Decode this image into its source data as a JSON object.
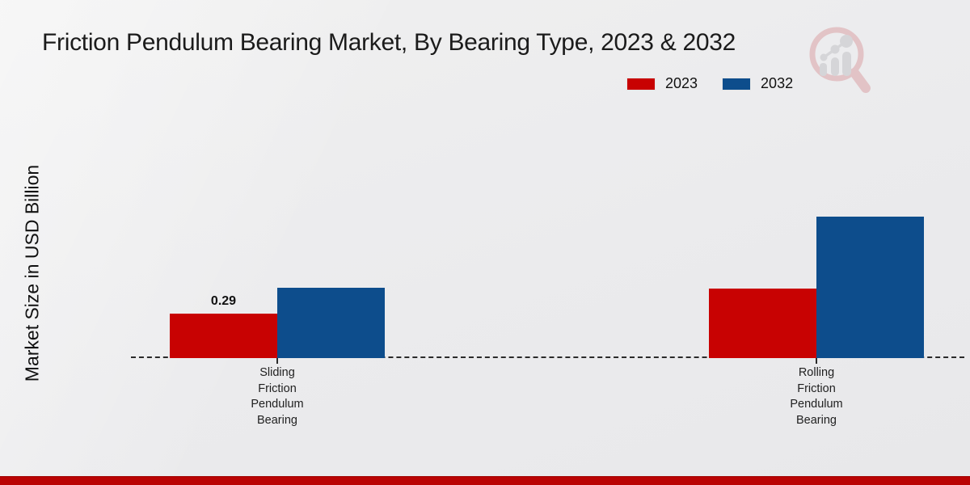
{
  "page": {
    "title": "Friction Pendulum Bearing Market, By Bearing Type, 2023 & 2032",
    "ylabel": "Market Size in USD Billion"
  },
  "colors": {
    "series_2023": "#c80202",
    "series_2032": "#0d4d8c",
    "footer_bar": "#ba0303",
    "baseline": "#2a2a2a"
  },
  "logo": {
    "name": "magnifier-bar-chart-watermark"
  },
  "chart_data": {
    "type": "bar",
    "title": "Friction Pendulum Bearing Market, By Bearing Type, 2023 & 2032",
    "xlabel": "",
    "ylabel": "Market Size in USD Billion",
    "categories": [
      "Sliding Friction Pendulum Bearing",
      "Rolling Friction Pendulum Bearing"
    ],
    "category_lines": [
      [
        "Sliding",
        "Friction",
        "Pendulum",
        "Bearing"
      ],
      [
        "Rolling",
        "Friction",
        "Pendulum",
        "Bearing"
      ]
    ],
    "series": [
      {
        "name": "2023",
        "color": "#c80202",
        "values": [
          0.29,
          0.45
        ],
        "data_labels": [
          "0.29",
          null
        ]
      },
      {
        "name": "2032",
        "color": "#0d4d8c",
        "values": [
          0.46,
          0.92
        ],
        "data_labels": [
          null,
          null
        ]
      }
    ],
    "ylim": [
      0,
      1.0
    ],
    "grid": false,
    "legend_position": "top-right",
    "baseline_style": "dashed",
    "y_axis_ticks_visible": false
  }
}
